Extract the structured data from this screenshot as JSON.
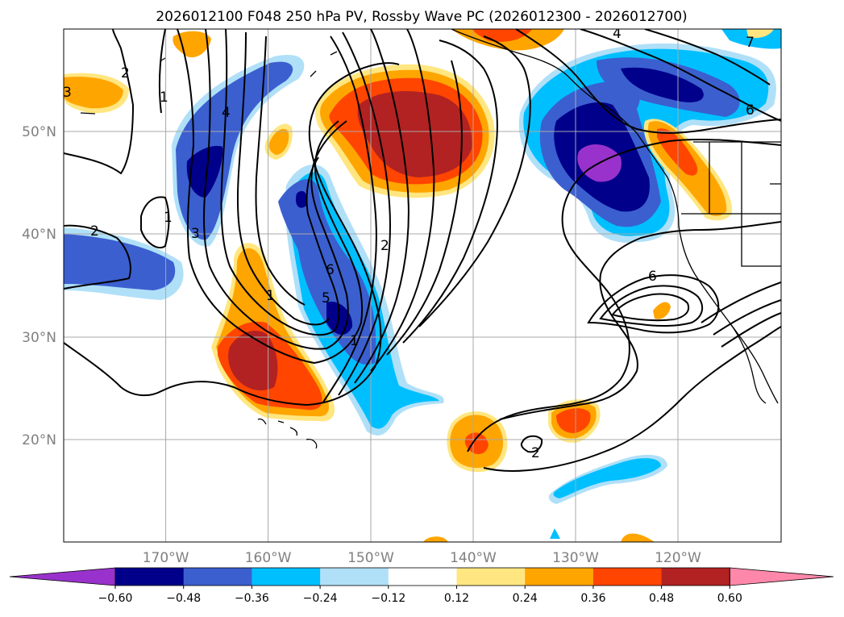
{
  "title": "2026012100 F048 250 hPa PV, Rossby Wave PC (2026012300 - 2026012700)",
  "latitude_labels": [
    "50°N",
    "40°N",
    "30°N",
    "20°N"
  ],
  "longitude_labels": [
    "170°W",
    "160°W",
    "150°W",
    "140°W",
    "130°W",
    "120°W"
  ],
  "contour_labels": [
    "2",
    "1",
    "3",
    "4",
    "1",
    "3",
    "2",
    "1",
    "6",
    "5",
    "1",
    "2",
    "6",
    "2",
    "4",
    "6",
    "7"
  ],
  "colorbar": {
    "ticks": [
      "−0.60",
      "−0.48",
      "−0.36",
      "−0.24",
      "−0.12",
      "0.12",
      "0.24",
      "0.36",
      "0.48",
      "0.60"
    ],
    "colors": [
      "#9932cc",
      "#00008b",
      "#3b5fcf",
      "#00bfff",
      "#b0e0f8",
      "#ffffff",
      "#ffe680",
      "#ffa500",
      "#ff4500",
      "#b22222",
      "#ff88aa"
    ]
  },
  "fill_colors": {
    "purple": "#9932cc",
    "navy": "#00008b",
    "blue": "#3b5fcf",
    "deep_sky": "#00bfff",
    "light_blue": "#b0e0f8",
    "light_yellow": "#ffe680",
    "orange": "#ffa500",
    "orange_red": "#ff4500",
    "firebrick": "#b22222"
  }
}
